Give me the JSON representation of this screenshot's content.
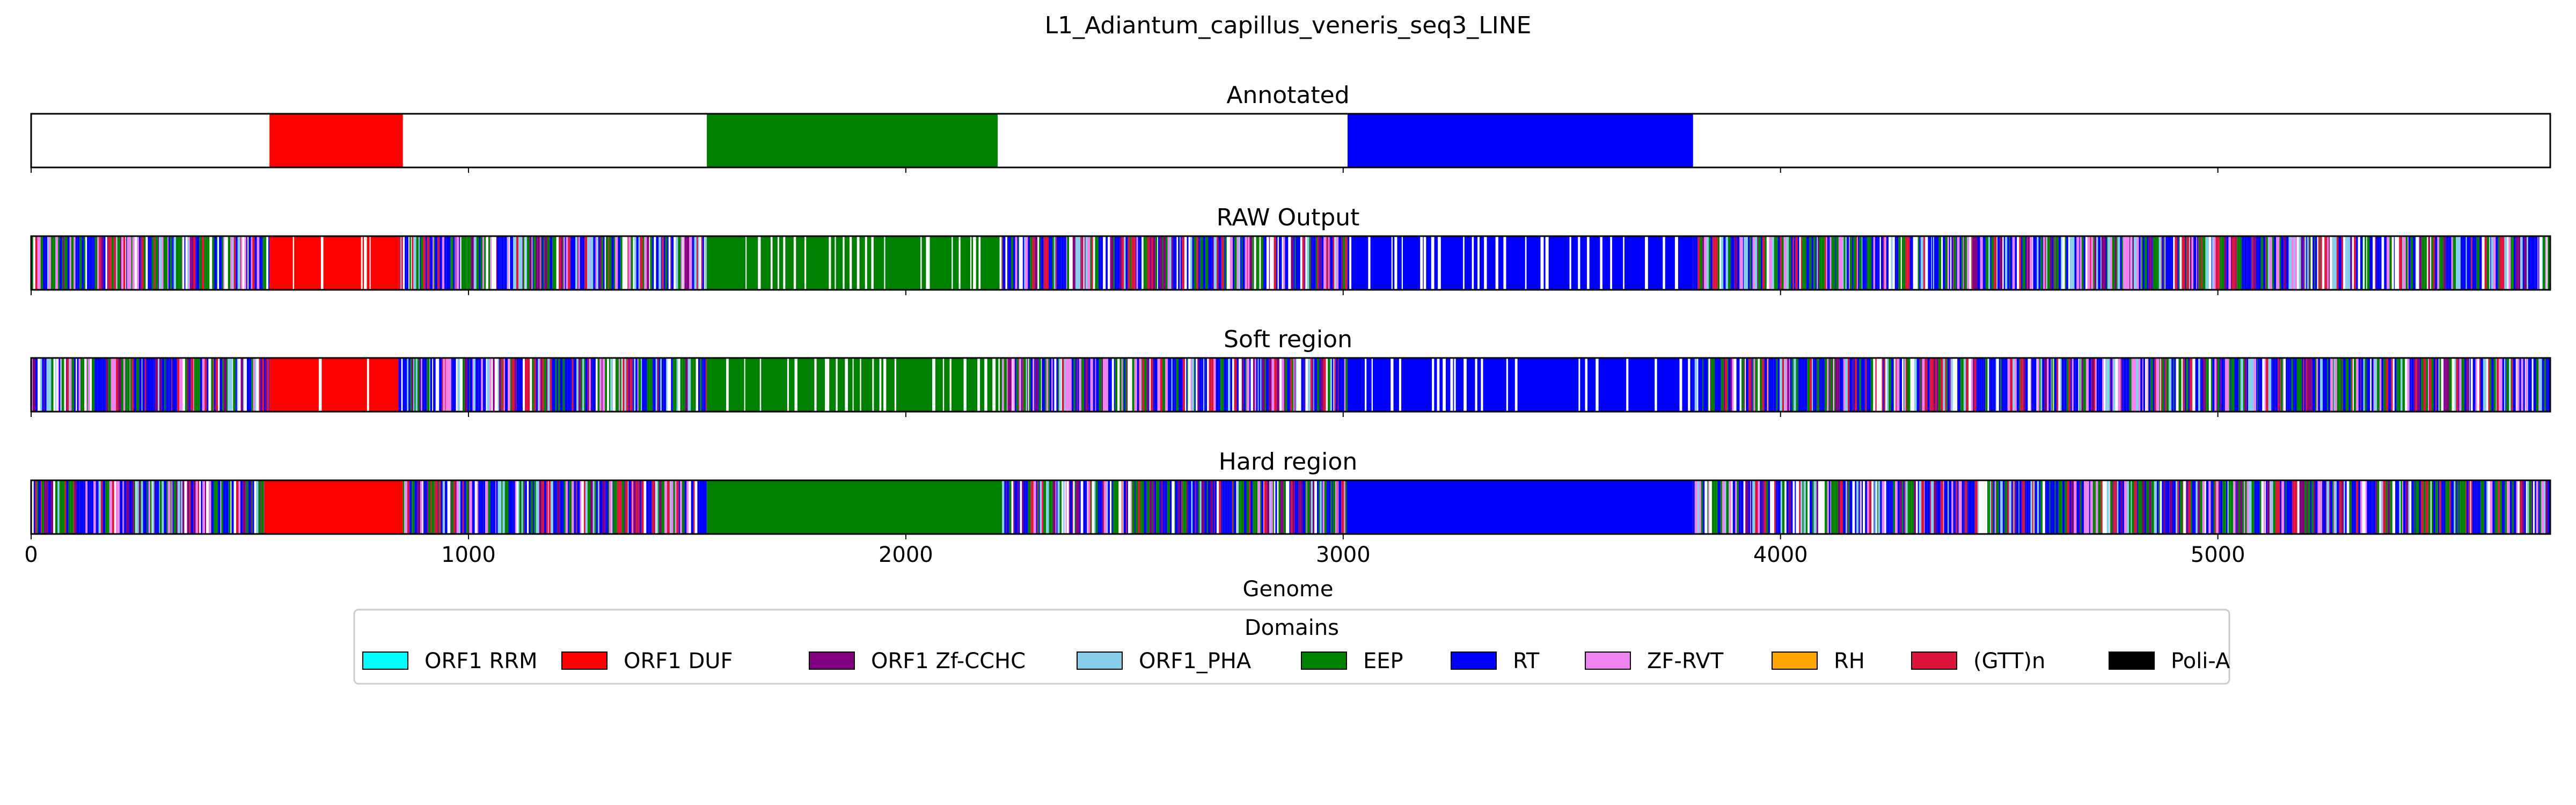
{
  "chart_data": {
    "type": "bar",
    "title": "L1_Adiantum_capillus_veneris_seq3_LINE",
    "xlabel": "Genome",
    "xlim": [
      0,
      5760
    ],
    "xticks": [
      0,
      1000,
      2000,
      3000,
      4000,
      5000
    ],
    "grid": false,
    "legend": {
      "title": "Domains",
      "placement": "bottom-center",
      "entries": [
        {
          "label": "ORF1 RRM",
          "color": "#00ffff"
        },
        {
          "label": "ORF1 DUF",
          "color": "#ff0000"
        },
        {
          "label": "ORF1 Zf-CCHC",
          "color": "#800080"
        },
        {
          "label": "ORF1_PHA",
          "color": "#87ceeb"
        },
        {
          "label": "EEP",
          "color": "#008000"
        },
        {
          "label": "RT",
          "color": "#0000ff"
        },
        {
          "label": "ZF-RVT",
          "color": "#ee82ee"
        },
        {
          "label": "RH",
          "color": "#ffa500"
        },
        {
          "label": "(GTT)n",
          "color": "#dc143c"
        },
        {
          "label": "Poli-A",
          "color": "#000000"
        }
      ]
    },
    "panels": [
      {
        "title": "Annotated",
        "segments": [
          {
            "start": 545,
            "end": 850,
            "domain": "ORF1 DUF"
          },
          {
            "start": 1545,
            "end": 2210,
            "domain": "EEP"
          },
          {
            "start": 3010,
            "end": 3800,
            "domain": "RT"
          }
        ]
      },
      {
        "title": "RAW Output",
        "segments": [
          {
            "start": 0,
            "end": 230,
            "domain": "mixed"
          },
          {
            "start": 230,
            "end": 545,
            "domain": "mixed"
          },
          {
            "start": 545,
            "end": 840,
            "domain": "ORF1 DUF"
          },
          {
            "start": 840,
            "end": 1545,
            "domain": "mixed"
          },
          {
            "start": 1545,
            "end": 2220,
            "domain": "EEP"
          },
          {
            "start": 2220,
            "end": 3010,
            "domain": "mixed"
          },
          {
            "start": 3010,
            "end": 3800,
            "domain": "RT"
          },
          {
            "start": 3800,
            "end": 5760,
            "domain": "mixed"
          }
        ]
      },
      {
        "title": "Soft region",
        "segments": [
          {
            "start": 0,
            "end": 230,
            "domain": "mixed"
          },
          {
            "start": 230,
            "end": 545,
            "domain": "mixed"
          },
          {
            "start": 545,
            "end": 840,
            "domain": "ORF1 DUF"
          },
          {
            "start": 840,
            "end": 1545,
            "domain": "mixed"
          },
          {
            "start": 1545,
            "end": 2220,
            "domain": "EEP"
          },
          {
            "start": 2220,
            "end": 3010,
            "domain": "mixed"
          },
          {
            "start": 3010,
            "end": 3800,
            "domain": "RT"
          },
          {
            "start": 3800,
            "end": 5760,
            "domain": "mixed"
          }
        ]
      },
      {
        "title": "Hard region",
        "segments": [
          {
            "start": 0,
            "end": 545,
            "domain": "mixed"
          },
          {
            "start": 535,
            "end": 850,
            "domain": "ORF1 DUF"
          },
          {
            "start": 850,
            "end": 1545,
            "domain": "mixed"
          },
          {
            "start": 1545,
            "end": 2220,
            "domain": "EEP"
          },
          {
            "start": 2220,
            "end": 3010,
            "domain": "mixed"
          },
          {
            "start": 3010,
            "end": 3800,
            "domain": "RT"
          },
          {
            "start": 3800,
            "end": 5760,
            "domain": "mixed"
          }
        ]
      }
    ]
  }
}
